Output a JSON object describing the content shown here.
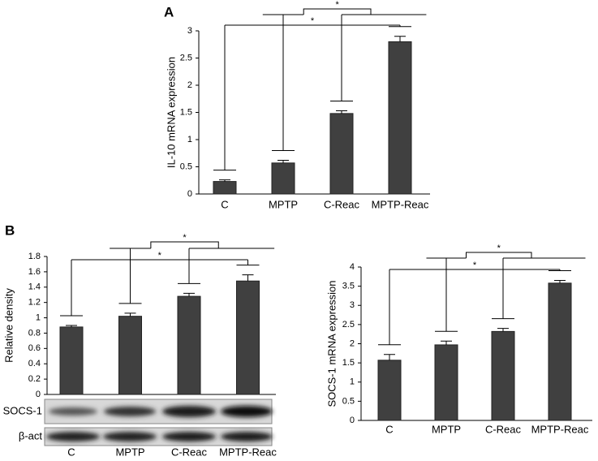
{
  "panels": [
    "A",
    "B"
  ],
  "blot_labels": [
    "SOCS-1",
    "β-act"
  ],
  "chart_data": [
    {
      "type": "bar",
      "y_label": "IL-10  mRNA expression",
      "categories": [
        "C",
        "MPTP",
        "C-Reac",
        "MPTP-Reac"
      ],
      "values": [
        0.23,
        0.57,
        1.48,
        2.8
      ],
      "errors": [
        0.03,
        0.05,
        0.05,
        0.1
      ],
      "color": "#404040",
      "ylim": [
        0,
        3
      ],
      "yticks": [
        0,
        0.5,
        1,
        1.5,
        2,
        2.5,
        3
      ],
      "annotations": [
        "*",
        "*"
      ]
    },
    {
      "type": "bar",
      "y_label": "Relative density",
      "categories": [
        "C",
        "MPTP",
        "C-Reac",
        "MPTP-Reac"
      ],
      "values": [
        0.88,
        1.02,
        1.28,
        1.48
      ],
      "errors": [
        0.02,
        0.04,
        0.04,
        0.08
      ],
      "color": "#404040",
      "ylim": [
        0,
        1.8
      ],
      "yticks": [
        0,
        0.2,
        0.4,
        0.6,
        0.8,
        1,
        1.2,
        1.4,
        1.6,
        1.8
      ],
      "annotations": [
        "*",
        "*"
      ]
    },
    {
      "type": "bar",
      "y_label": "SOCS-1 mRNA expression",
      "categories": [
        "C",
        "MPTP",
        "C-Reac",
        "MPTP-Reac"
      ],
      "values": [
        1.57,
        1.97,
        2.32,
        3.58
      ],
      "errors": [
        0.15,
        0.1,
        0.08,
        0.07
      ],
      "color": "#404040",
      "ylim": [
        0,
        4
      ],
      "yticks": [
        0,
        0.5,
        1,
        1.5,
        2,
        2.5,
        3,
        3.5,
        4
      ],
      "annotations": [
        "*",
        "*"
      ]
    }
  ]
}
